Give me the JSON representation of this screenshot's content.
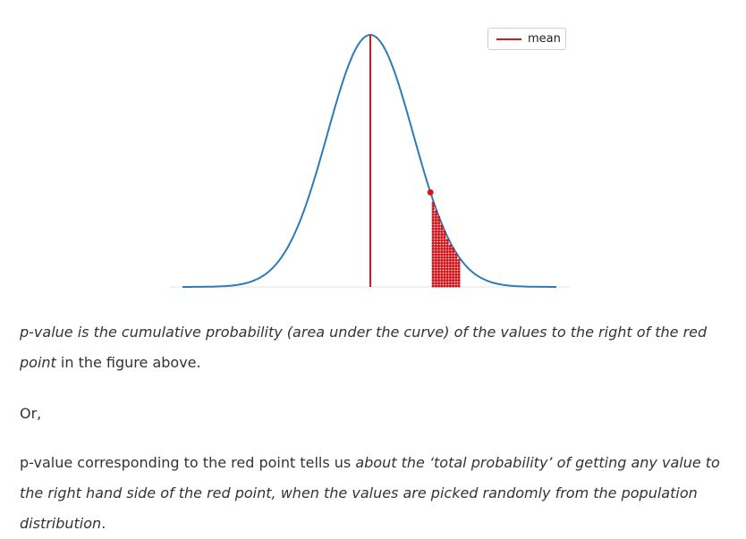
{
  "figure": {
    "legend_label": "mean",
    "colors": {
      "curve": "#2f7bb6",
      "mean_line": "#e0141c",
      "points": "#d4161c",
      "baseline": "#e6e6e6"
    }
  },
  "chart_data": {
    "type": "line",
    "title": "",
    "xlabel": "",
    "ylabel": "",
    "grid": false,
    "legend_placement": "top-right",
    "series": [
      {
        "name": "mean",
        "kind": "vertical-line",
        "x": 0
      }
    ],
    "distribution": "normal",
    "red_point_z": 1.4
  },
  "text": {
    "p1_a": "p-value is the cumulative probability (area under the curve) of the values to the right of the red point",
    "p1_b": " in the figure above.",
    "p2": "Or,",
    "p3_a": "p-value corresponding to the red point tells us ",
    "p3_b": "about the ‘total probability’ of getting any value to the right hand side of the red point, when the values are picked randomly from the population distribution",
    "p3_c": "."
  }
}
